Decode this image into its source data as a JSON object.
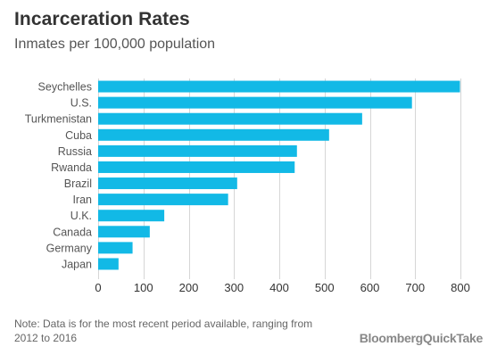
{
  "header": {
    "title": "Incarceration Rates",
    "subtitle": "Inmates per 100,000 population"
  },
  "footer": {
    "note": "Note: Data is for the most recent period available, ranging from 2012 to 2016",
    "brand_part1": "Bloomberg",
    "brand_part2": "QuickTake"
  },
  "colors": {
    "bar": "#12b9e6",
    "grid": "#d6d6d6",
    "label": "#555555",
    "axis": "#333333"
  },
  "chart_data": {
    "type": "bar",
    "orientation": "horizontal",
    "title": "Incarceration Rates",
    "subtitle": "Inmates per 100,000 population",
    "categories": [
      "Seychelles",
      "U.S.",
      "Turkmenistan",
      "Cuba",
      "Russia",
      "Rwanda",
      "Brazil",
      "Iran",
      "U.K.",
      "Canada",
      "Germany",
      "Japan"
    ],
    "values": [
      799,
      693,
      583,
      510,
      439,
      434,
      307,
      287,
      146,
      114,
      76,
      45
    ],
    "xlim": [
      0,
      800
    ],
    "xticks": [
      0,
      100,
      200,
      300,
      400,
      500,
      600,
      700,
      800
    ],
    "grid": true,
    "legend": "none"
  }
}
